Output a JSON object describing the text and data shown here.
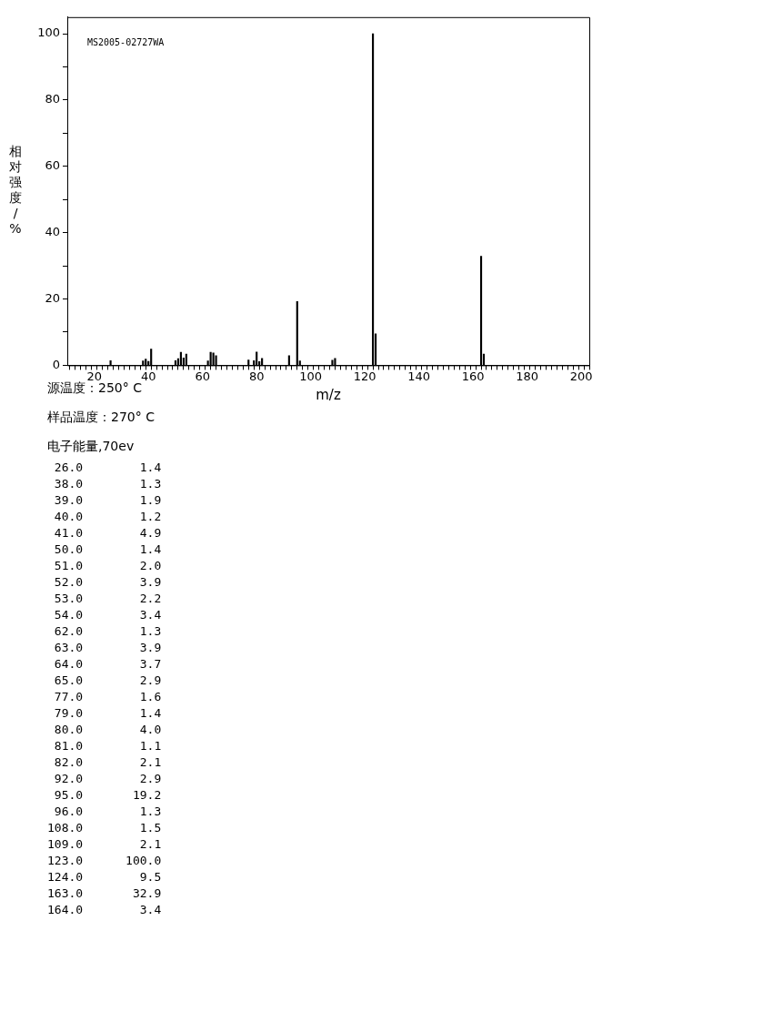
{
  "chart_data": {
    "type": "bar",
    "ylabel": "相对强度/%",
    "xlabel": "m/z",
    "annotations": [
      "MS2005-02727WA",
      "源温度：250° C",
      "样品温度：270° C",
      "电子能量,70ev",
      " 26.0        1.4",
      " 38.0        1.3",
      " 39.0        1.9",
      " 40.0        1.2",
      " 41.0        4.9",
      " 50.0        1.4",
      " 51.0        2.0",
      " 52.0        3.9",
      " 53.0        2.2",
      " 54.0        3.4",
      " 62.0        1.3",
      " 63.0        3.9",
      " 64.0        3.7",
      " 65.0        2.9",
      " 77.0        1.6",
      " 79.0        1.4",
      " 80.0        4.0",
      " 81.0        1.1",
      " 82.0        2.1",
      " 92.0        2.9",
      " 95.0       19.2",
      " 96.0        1.3",
      "108.0        1.5",
      "109.0        2.1",
      "123.0      100.0",
      "124.0        9.5",
      "163.0       32.9",
      "164.0        3.4"
    ],
    "x": [
      26,
      38,
      39,
      40,
      41,
      50,
      51,
      52,
      53,
      54,
      62,
      63,
      64,
      65,
      77,
      79,
      80,
      81,
      82,
      92,
      95,
      96,
      108,
      109,
      123,
      124,
      163,
      164
    ],
    "values": [
      1.4,
      1.3,
      1.9,
      1.2,
      4.9,
      1.4,
      2.0,
      3.9,
      2.2,
      3.4,
      1.3,
      3.9,
      3.7,
      2.9,
      1.6,
      1.4,
      4.0,
      1.1,
      2.1,
      2.9,
      19.2,
      1.3,
      1.5,
      2.1,
      100.0,
      9.5,
      32.9,
      3.4
    ],
    "color": "#000000",
    "xlim": [
      10,
      203
    ],
    "xticks": [
      {
        "value": 12,
        "label": null
      },
      {
        "value": 14,
        "label": null
      },
      {
        "value": 16,
        "label": null
      },
      {
        "value": 18,
        "label": null
      },
      20,
      {
        "value": 22,
        "label": null
      },
      {
        "value": 24,
        "label": null
      },
      {
        "value": 26,
        "label": null
      },
      {
        "value": 28,
        "label": null
      },
      {
        "value": 30,
        "label": null
      },
      {
        "value": 32,
        "label": null
      },
      {
        "value": 34,
        "label": null
      },
      {
        "value": 36,
        "label": null
      },
      {
        "value": 38,
        "label": null
      },
      40,
      {
        "value": 42,
        "label": null
      },
      {
        "value": 44,
        "label": null
      },
      {
        "value": 46,
        "label": null
      },
      {
        "value": 48,
        "label": null
      },
      {
        "value": 50,
        "label": null
      },
      {
        "value": 52,
        "label": null
      },
      {
        "value": 54,
        "label": null
      },
      {
        "value": 56,
        "label": null
      },
      {
        "value": 58,
        "label": null
      },
      60,
      {
        "value": 62,
        "label": null
      },
      {
        "value": 64,
        "label": null
      },
      {
        "value": 66,
        "label": null
      },
      {
        "value": 68,
        "label": null
      },
      {
        "value": 70,
        "label": null
      },
      {
        "value": 72,
        "label": null
      },
      {
        "value": 74,
        "label": null
      },
      {
        "value": 76,
        "label": null
      },
      {
        "value": 78,
        "label": null
      },
      80,
      {
        "value": 82,
        "label": null
      },
      {
        "value": 84,
        "label": null
      },
      {
        "value": 86,
        "label": null
      },
      {
        "value": 88,
        "label": null
      },
      {
        "value": 90,
        "label": null
      },
      {
        "value": 92,
        "label": null
      },
      {
        "value": 94,
        "label": null
      },
      {
        "value": 96,
        "label": null
      },
      {
        "value": 98,
        "label": null
      },
      100,
      {
        "value": 102,
        "label": null
      },
      {
        "value": 104,
        "label": null
      },
      {
        "value": 106,
        "label": null
      },
      {
        "value": 108,
        "label": null
      },
      {
        "value": 110,
        "label": null
      },
      {
        "value": 112,
        "label": null
      },
      {
        "value": 114,
        "label": null
      },
      {
        "value": 116,
        "label": null
      },
      {
        "value": 118,
        "label": null
      },
      120,
      {
        "value": 122,
        "label": null
      },
      {
        "value": 124,
        "label": null
      },
      {
        "value": 126,
        "label": null
      },
      {
        "value": 128,
        "label": null
      },
      {
        "value": 130,
        "label": null
      },
      {
        "value": 132,
        "label": null
      },
      {
        "value": 134,
        "label": null
      },
      {
        "value": 136,
        "label": null
      },
      {
        "value": 138,
        "label": null
      },
      140,
      {
        "value": 142,
        "label": null
      },
      {
        "value": 144,
        "label": null
      },
      {
        "value": 146,
        "label": null
      },
      {
        "value": 148,
        "label": null
      },
      {
        "value": 150,
        "label": null
      },
      {
        "value": 152,
        "label": null
      },
      {
        "value": 154,
        "label": null
      },
      {
        "value": 156,
        "label": null
      },
      {
        "value": 158,
        "label": null
      },
      160,
      {
        "value": 162,
        "label": null
      },
      {
        "value": 164,
        "label": null
      },
      {
        "value": 166,
        "label": null
      },
      {
        "value": 168,
        "label": null
      },
      {
        "value": 170,
        "label": null
      },
      {
        "value": 172,
        "label": null
      },
      {
        "value": 174,
        "label": null
      },
      {
        "value": 176,
        "label": null
      },
      {
        "value": 178,
        "label": null
      },
      180,
      {
        "value": 182,
        "label": null
      },
      {
        "value": 184,
        "label": null
      },
      {
        "value": 186,
        "label": null
      },
      {
        "value": 188,
        "label": null
      },
      {
        "value": 190,
        "label": null
      },
      {
        "value": 192,
        "label": null
      },
      {
        "value": 194,
        "label": null
      },
      {
        "value": 196,
        "label": null
      },
      {
        "value": 198,
        "label": null
      },
      200,
      {
        "value": 202,
        "label": null
      }
    ],
    "ylim": [
      0,
      105
    ],
    "yticks": [
      0,
      {
        "value": 10,
        "label": null
      },
      20,
      {
        "value": 30,
        "label": null
      },
      40,
      {
        "value": 50,
        "label": null
      },
      60,
      {
        "value": 70,
        "label": null
      },
      80,
      {
        "value": 90,
        "label": null
      },
      100
    ],
    "grid": false,
    "legend": false
  }
}
